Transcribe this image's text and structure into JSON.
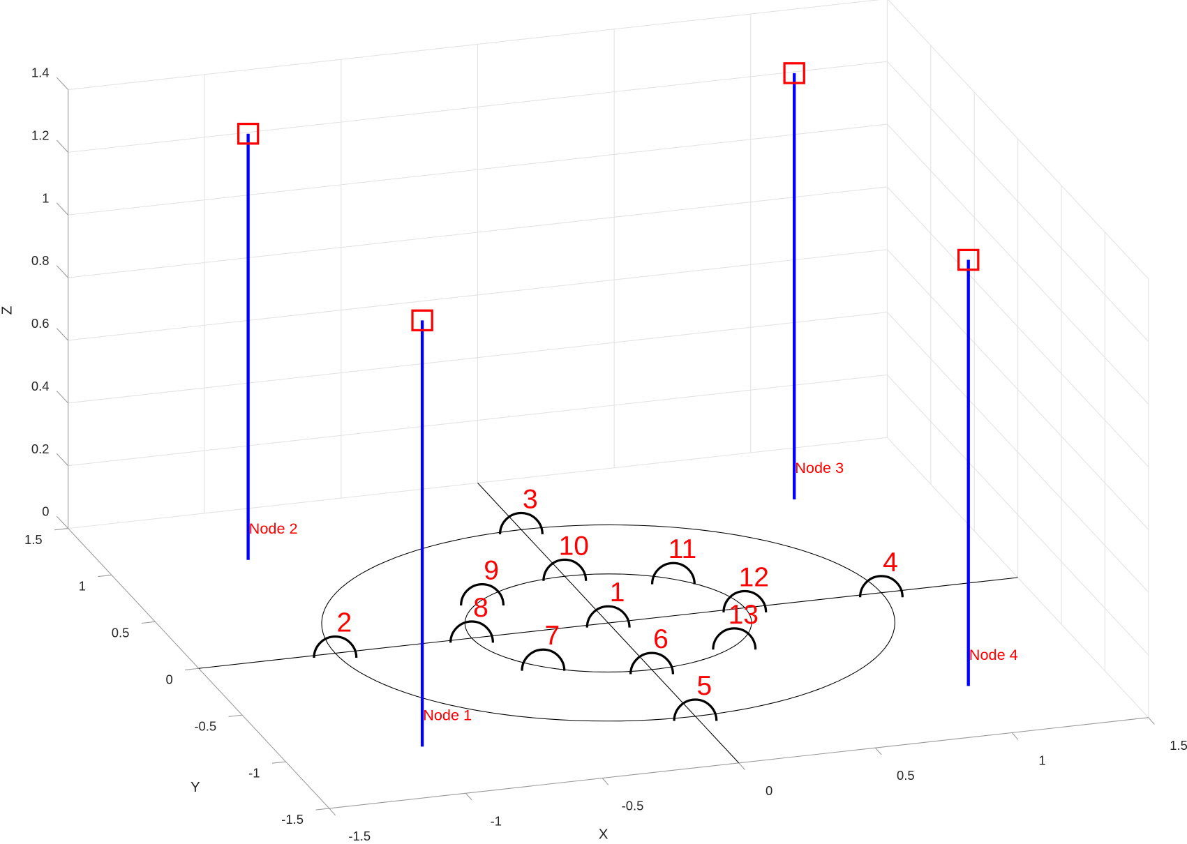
{
  "chart_data": {
    "type": "scatter3d",
    "xlabel": "X",
    "ylabel": "Y",
    "zlabel": "Z",
    "xlim": [
      -1.5,
      1.5
    ],
    "ylim": [
      -1.5,
      1.5
    ],
    "zlim": [
      0,
      1.4
    ],
    "xticks": [
      -1.5,
      -1,
      -0.5,
      0,
      0.5,
      1,
      1.5
    ],
    "yticks": [
      -1.5,
      -1,
      -0.5,
      0,
      0.5,
      1,
      1.5
    ],
    "zticks": [
      0,
      0.2,
      0.4,
      0.6,
      0.8,
      1,
      1.2,
      1.4
    ],
    "grid": true,
    "rings": [
      1,
      0.5
    ],
    "nodes": {
      "names": [
        "Node 1",
        "Node 2",
        "Node 3",
        "Node 4"
      ],
      "x": [
        -1,
        -1,
        1,
        1
      ],
      "y": [
        -1,
        1,
        1,
        -1
      ],
      "z": [
        1.36,
        1.36,
        1.36,
        1.36
      ],
      "color": "#0000ff",
      "marker_color": "#ff0000"
    },
    "markers": {
      "labels": [
        "1",
        "2",
        "3",
        "4",
        "5",
        "6",
        "7",
        "8",
        "9",
        "10",
        "11",
        "12",
        "13"
      ],
      "x": [
        0,
        -1,
        0,
        1,
        0,
        0,
        -0.35,
        -0.5,
        -0.35,
        0,
        0.35,
        0.5,
        0.35
      ],
      "y": [
        0,
        0,
        1,
        0,
        -1,
        -0.5,
        -0.35,
        0,
        0.35,
        0.5,
        0.35,
        0,
        -0.35
      ],
      "color": "#000000",
      "label_color": "#ff0000"
    }
  }
}
